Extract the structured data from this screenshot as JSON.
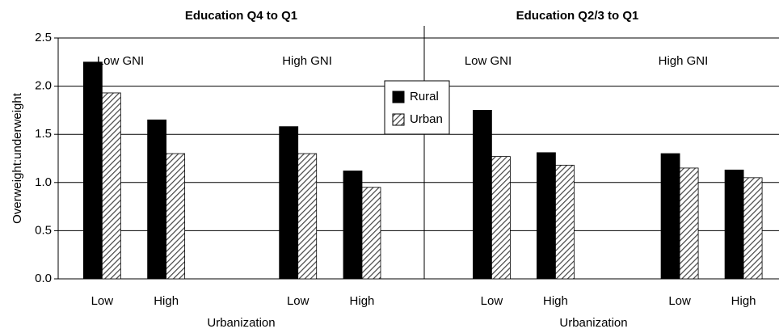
{
  "chart_data": {
    "type": "bar",
    "ylabel": "Overweight:underweight",
    "ylim": [
      0,
      2.5
    ],
    "yticks": [
      {
        "value": 0,
        "label": "0.0"
      },
      0.5,
      {
        "value": 1,
        "label": "1.0"
      },
      1.5,
      {
        "value": 2,
        "label": "2.0"
      },
      2.5
    ],
    "grid": true,
    "categories": [
      "Low",
      "High",
      null,
      "Low",
      "High",
      "Low",
      "High",
      null,
      "Low",
      "High"
    ],
    "series": [
      {
        "name": "Rural",
        "color": "#000000",
        "values": [
          2.25,
          1.65,
          null,
          1.58,
          1.12,
          1.75,
          1.31,
          null,
          1.3,
          1.13
        ]
      },
      {
        "name": "Urban",
        "color": "#444444",
        "pattern": "hatch",
        "values": [
          1.93,
          1.3,
          null,
          1.3,
          0.95,
          1.27,
          1.18,
          null,
          1.15,
          1.05
        ]
      }
    ],
    "panels": [
      {
        "title": "Education Q4 to Q1",
        "xlabel": "Urbanization",
        "groups": [
          "Low GNI",
          "High GNI"
        ]
      },
      {
        "title": "Education Q2/3 to Q1",
        "xlabel": "Urbanization",
        "groups": [
          "Low GNI",
          "High GNI"
        ]
      }
    ]
  }
}
